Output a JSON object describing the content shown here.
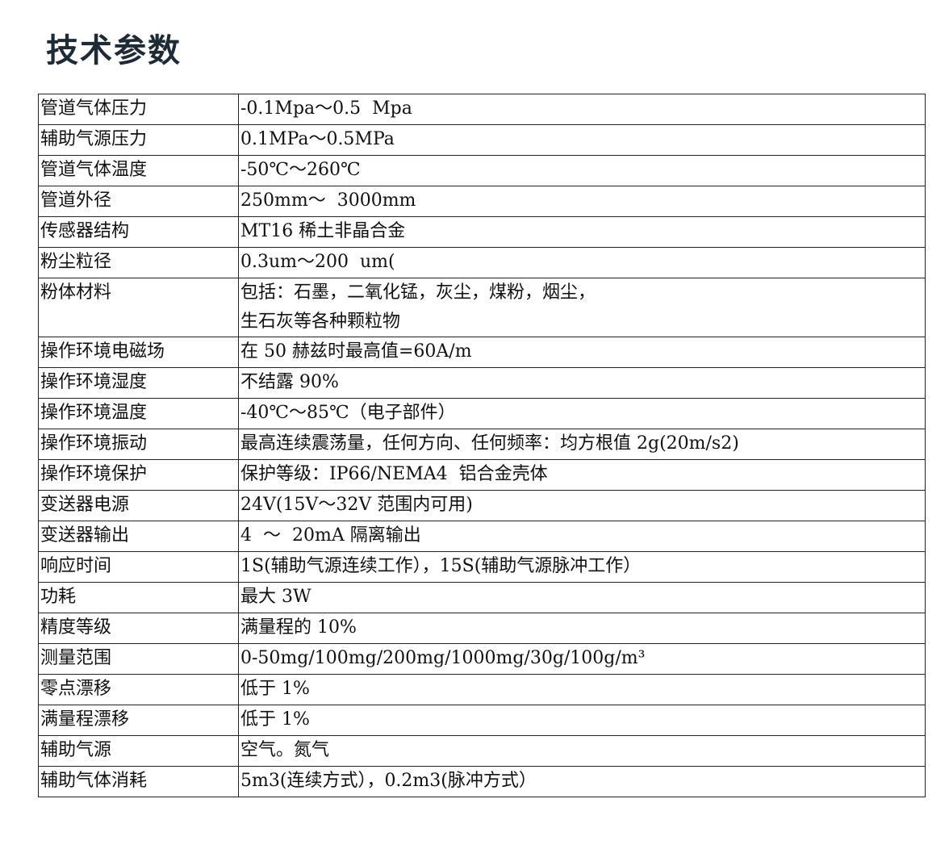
{
  "title": "技术参数",
  "table": {
    "rows": [
      [
        "管道气体压力",
        "-0.1Mpa～0.5  Mpa"
      ],
      [
        "辅助气源压力",
        "0.1MPa～0.5MPa"
      ],
      [
        "管道气体温度",
        "-50℃～260℃"
      ],
      [
        "管道外径",
        "250mm～  3000mm"
      ],
      [
        "传感器结构",
        "MT16 稀土非晶合金"
      ],
      [
        "粉尘粒径",
        "0.3um～200  um("
      ],
      [
        "粉体材料",
        "包括：石墨，二氧化锰，灰尘，煤粉，烟尘，\n生石灰等各种颗粒物"
      ],
      [
        "操作环境电磁场",
        "在 50 赫兹时最高值=60A/m"
      ],
      [
        "操作环境湿度",
        "不结露 90%"
      ],
      [
        "操作环境温度",
        "-40℃～85℃（电子部件）"
      ],
      [
        "操作环境振动",
        "最高连续震荡量，任何方向、任何频率：均方根值 2g(20m/s2)"
      ],
      [
        "操作环境保护",
        "保护等级：IP66/NEMA4  铝合金壳体"
      ],
      [
        "变送器电源",
        "24V(15V～32V 范围内可用)"
      ],
      [
        "变送器输出",
        "4  ～  20mA 隔离输出"
      ],
      [
        "响应时间",
        "1S(辅助气源连续工作），15S(辅助气源脉冲工作）"
      ],
      [
        "功耗",
        "最大 3W"
      ],
      [
        "精度等级",
        "满量程的 10%"
      ],
      [
        "测量范围",
        "0-50mg/100mg/200mg/1000mg/30g/100g/m³"
      ],
      [
        "零点漂移",
        "低于 1%"
      ],
      [
        "满量程漂移",
        "低于 1%"
      ],
      [
        "辅助气源",
        "空气。氮气"
      ],
      [
        "辅助气体消耗",
        "5m3(连续方式），0.2m3(脉冲方式）"
      ]
    ]
  }
}
